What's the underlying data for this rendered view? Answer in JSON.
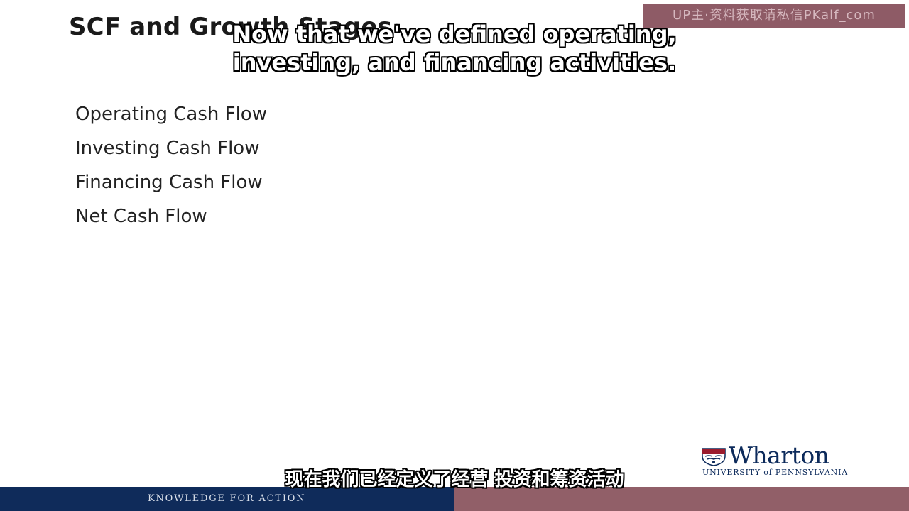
{
  "slide": {
    "title": "SCF and Growth Stages",
    "bullets": [
      "Operating Cash Flow",
      "Investing Cash Flow",
      "Financing Cash Flow",
      "Net Cash Flow"
    ]
  },
  "watermark": {
    "text": "UP主·资料获取请私信PKalf_com"
  },
  "subtitles": {
    "english_lines": [
      "Now that we've defined operating,",
      "investing, and financing activities."
    ],
    "chinese": "现在我们已经定义了经营 投资和筹资活动"
  },
  "logo": {
    "name": "Wharton",
    "sub": "UNIVERSITY of PENNSYLVANIA",
    "icon": "penn-shield-icon"
  },
  "footer": {
    "tagline": "KNOWLEDGE FOR ACTION",
    "colors": {
      "left": "#0f2b5a",
      "right": "#915f68"
    }
  }
}
